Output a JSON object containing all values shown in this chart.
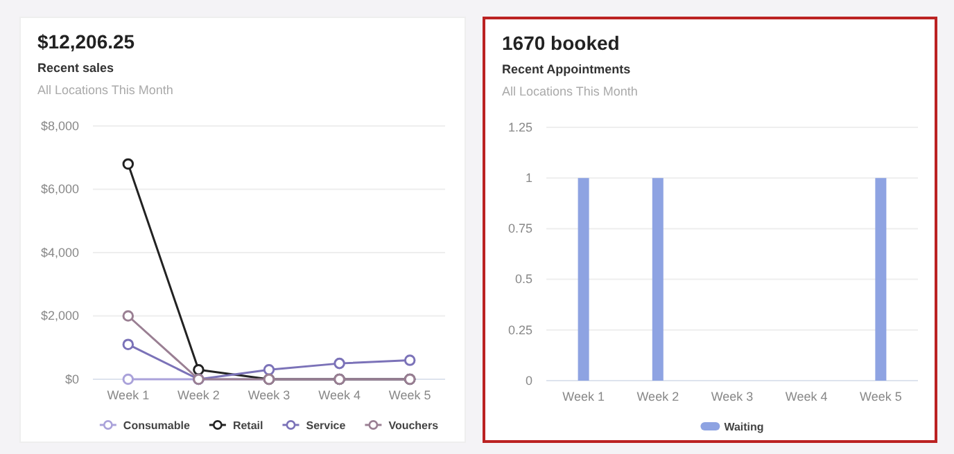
{
  "chart_data": [
    {
      "type": "line",
      "title": "$12,206.25",
      "subtitle": "Recent sales",
      "annotations": [
        "All Locations This Month"
      ],
      "categories": [
        "Week 1",
        "Week 2",
        "Week 3",
        "Week 4",
        "Week 5"
      ],
      "series": [
        {
          "name": "Consumable",
          "color": "#aaa2da",
          "values": [
            0,
            0,
            0,
            0,
            0
          ]
        },
        {
          "name": "Retail",
          "color": "#222222",
          "values": [
            6800,
            300,
            0,
            0,
            0
          ]
        },
        {
          "name": "Service",
          "color": "#7b72b8",
          "values": [
            1100,
            0,
            300,
            500,
            600
          ]
        },
        {
          "name": "Vouchers",
          "color": "#9a7f93",
          "values": [
            2000,
            0,
            0,
            0,
            0
          ]
        }
      ],
      "ylim": [
        0,
        8000
      ],
      "yticks": [
        {
          "value": 0,
          "label": "$0"
        },
        {
          "value": 2000,
          "label": "$2,000"
        },
        {
          "value": 4000,
          "label": "$4,000"
        },
        {
          "value": 6000,
          "label": "$6,000"
        },
        {
          "value": 8000,
          "label": "$8,000"
        }
      ],
      "grid": "y",
      "legend": "bottom",
      "marker": "circle"
    },
    {
      "type": "bar",
      "title": "1670 booked",
      "subtitle": "Recent Appointments",
      "annotations": [
        "All Locations This Month"
      ],
      "categories": [
        "Week 1",
        "Week 2",
        "Week 3",
        "Week 4",
        "Week 5"
      ],
      "series": [
        {
          "name": "Waiting",
          "color": "#8ea3e2",
          "values": [
            1,
            1,
            0,
            0,
            1
          ]
        }
      ],
      "ylim": [
        0,
        1.25
      ],
      "yticks": [
        0,
        0.25,
        0.5,
        0.75,
        1,
        1.25
      ],
      "grid": "y",
      "legend": "bottom"
    }
  ]
}
